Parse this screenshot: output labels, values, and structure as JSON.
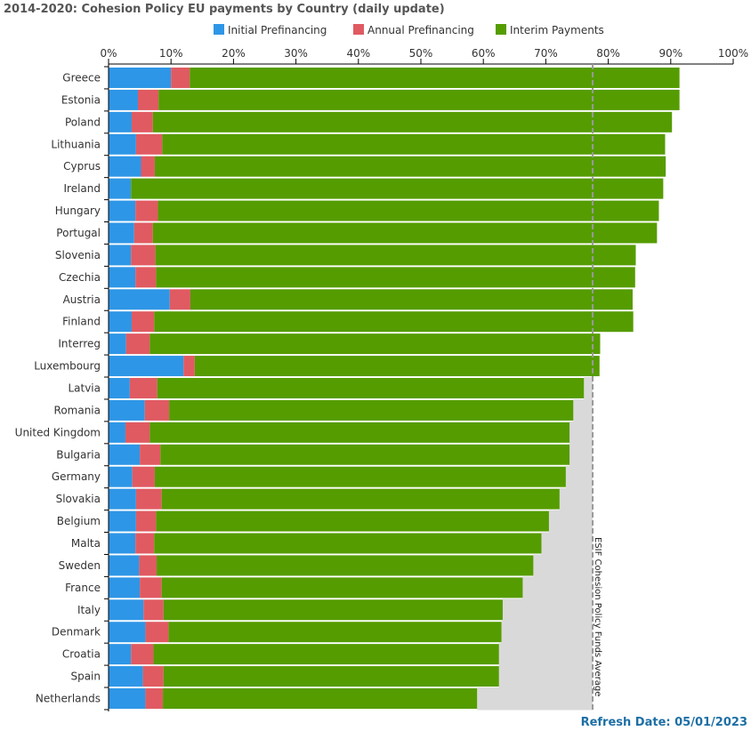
{
  "title": "2014-2020: Cohesion Policy EU payments by Country (daily update)",
  "refresh_text": "Refresh Date: 05/01/2023",
  "chart_data": {
    "type": "bar",
    "orientation": "horizontal",
    "stacked": true,
    "title": "2014-2020: Cohesion Policy EU payments by Country (daily update)",
    "xlim": [
      0,
      100
    ],
    "x_ticks": [
      "0%",
      "10%",
      "20%",
      "30%",
      "40%",
      "50%",
      "60%",
      "70%",
      "80%",
      "90%",
      "100%"
    ],
    "legend_position": "top",
    "categories": [
      "Greece",
      "Estonia",
      "Poland",
      "Lithuania",
      "Cyprus",
      "Ireland",
      "Hungary",
      "Portugal",
      "Slovenia",
      "Czechia",
      "Austria",
      "Finland",
      "Interreg",
      "Luxembourg",
      "Latvia",
      "Romania",
      "United Kingdom",
      "Bulgaria",
      "Germany",
      "Slovakia",
      "Belgium",
      "Malta",
      "Sweden",
      "France",
      "Italy",
      "Denmark",
      "Croatia",
      "Spain",
      "Netherlands"
    ],
    "series": [
      {
        "name": "Initial Prefinancing",
        "color": "#2e96e6",
        "values": [
          10.0,
          4.7,
          3.7,
          4.4,
          5.2,
          3.6,
          4.3,
          4.1,
          3.6,
          4.3,
          9.8,
          3.7,
          2.8,
          12.0,
          3.4,
          5.8,
          2.7,
          5.0,
          3.8,
          4.4,
          4.4,
          4.3,
          4.9,
          5.0,
          5.6,
          5.9,
          3.6,
          5.5,
          5.9
        ]
      },
      {
        "name": "Annual Prefinancing",
        "color": "#e05a62",
        "values": [
          3.0,
          3.3,
          3.4,
          4.2,
          2.2,
          0.0,
          3.6,
          3.0,
          3.9,
          3.3,
          3.3,
          3.6,
          3.8,
          1.8,
          4.4,
          3.9,
          3.9,
          3.3,
          3.6,
          4.1,
          3.2,
          3.0,
          2.8,
          3.5,
          3.2,
          3.7,
          3.6,
          3.3,
          2.8
        ]
      },
      {
        "name": "Interim Payments",
        "color": "#559c00",
        "values": [
          78.4,
          83.4,
          83.1,
          80.5,
          81.8,
          85.2,
          80.2,
          80.7,
          76.9,
          76.7,
          70.8,
          76.7,
          72.1,
          64.8,
          68.3,
          64.7,
          67.2,
          65.5,
          65.8,
          63.7,
          62.9,
          62.0,
          60.3,
          57.8,
          54.3,
          53.3,
          55.3,
          53.7,
          50.3
        ]
      }
    ],
    "reference_line": {
      "label": "ESIF Cohesion Policy Funds Average",
      "value": 77.5,
      "color": "#999999"
    },
    "grid": true
  }
}
